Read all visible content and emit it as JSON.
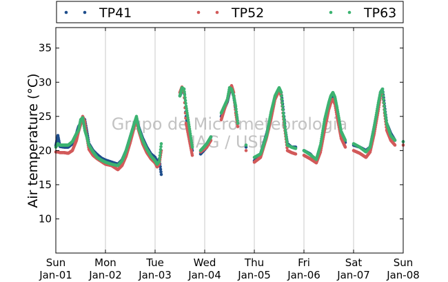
{
  "chart_data": {
    "type": "scatter",
    "ylabel": "Air temperature (°C)",
    "ylim": [
      5,
      38
    ],
    "yticks": [
      10,
      15,
      20,
      25,
      30,
      35
    ],
    "xlim": [
      "2000-01-01",
      "2000-01-08"
    ],
    "xticks": [
      {
        "date": "2000-01-01",
        "day": "Sun",
        "label": "Jan-01"
      },
      {
        "date": "2000-01-02",
        "day": "Mon",
        "label": "Jan-02"
      },
      {
        "date": "2000-01-03",
        "day": "Tue",
        "label": "Jan-03"
      },
      {
        "date": "2000-01-04",
        "day": "Wed",
        "label": "Jan-04"
      },
      {
        "date": "2000-01-05",
        "day": "Thu",
        "label": "Jan-05"
      },
      {
        "date": "2000-01-06",
        "day": "Fri",
        "label": "Jan-06"
      },
      {
        "date": "2000-01-07",
        "day": "Sat",
        "label": "Jan-07"
      },
      {
        "date": "2000-01-08",
        "day": "Sun",
        "label": "Jan-08"
      }
    ],
    "grid": "vertical",
    "legend_position": "top",
    "watermark": [
      "Grupo de Micrometeorologia",
      "IAG / USP"
    ],
    "series": [
      {
        "name": "TP41",
        "color": "#1f4e8c",
        "x": [
          "2000-01-01 00:00",
          "2000-01-01 01:00",
          "2000-01-01 02:00",
          "2000-01-01 04:00",
          "2000-01-01 06:00",
          "2000-01-01 08:00",
          "2000-01-01 10:00",
          "2000-01-01 11:00",
          "2000-01-01 12:00",
          "2000-01-01 13:00",
          "2000-01-01 14:00",
          "2000-01-01 15:00",
          "2000-01-01 16:00",
          "2000-01-01 18:00",
          "2000-01-01 20:00",
          "2000-01-01 22:00",
          "2000-01-02 00:00",
          "2000-01-02 03:00",
          "2000-01-02 06:00",
          "2000-01-02 08:00",
          "2000-01-02 10:00",
          "2000-01-02 12:00",
          "2000-01-02 14:00",
          "2000-01-02 15:00",
          "2000-01-02 16:00",
          "2000-01-02 18:00",
          "2000-01-02 20:00",
          "2000-01-02 22:00",
          "2000-01-03 00:00",
          "2000-01-03 01:00",
          "2000-01-03 02:00",
          "2000-01-03 03:00",
          "2000-01-03 12:00",
          "2000-01-03 13:00",
          "2000-01-03 14:00",
          "2000-01-03 15:00",
          "2000-01-03 18:00",
          "2000-01-03 22:00",
          "2000-01-04 01:00",
          "2000-01-04 03:00",
          "2000-01-04 08:00",
          "2000-01-04 11:00",
          "2000-01-04 12:00",
          "2000-01-04 13:00",
          "2000-01-04 14:00",
          "2000-01-04 15:00",
          "2000-01-04 16:00",
          "2000-01-04 20:00",
          "2000-01-05 00:00",
          "2000-01-05 03:00",
          "2000-01-05 06:00",
          "2000-01-05 08:00",
          "2000-01-05 10:00",
          "2000-01-05 12:00",
          "2000-01-05 13:00",
          "2000-01-05 14:00",
          "2000-01-05 15:00",
          "2000-01-05 16:00",
          "2000-01-05 18:00",
          "2000-01-05 20:00",
          "2000-01-06 00:00",
          "2000-01-06 03:00",
          "2000-01-06 06:00",
          "2000-01-06 08:00",
          "2000-01-06 10:00",
          "2000-01-06 12:00",
          "2000-01-06 13:00",
          "2000-01-06 14:00",
          "2000-01-06 15:00",
          "2000-01-06 16:00",
          "2000-01-06 18:00",
          "2000-01-06 20:00",
          "2000-01-07 00:00",
          "2000-01-07 03:00",
          "2000-01-07 06:00",
          "2000-01-07 08:00",
          "2000-01-07 10:00",
          "2000-01-07 12:00",
          "2000-01-07 13:00",
          "2000-01-07 14:00",
          "2000-01-07 15:00",
          "2000-01-07 16:00",
          "2000-01-07 18:00",
          "2000-01-07 20:00",
          "2000-01-08 00:00"
        ],
        "y": [
          20.7,
          22.2,
          20.6,
          20.5,
          20.5,
          21.0,
          22.5,
          23.5,
          24.0,
          24.8,
          24.5,
          22.8,
          21.0,
          20.0,
          19.4,
          18.9,
          18.6,
          18.3,
          18.0,
          18.6,
          20.0,
          22.0,
          24.0,
          24.8,
          23.5,
          21.8,
          20.5,
          19.5,
          19.0,
          18.2,
          18.8,
          16.5,
          28.0,
          28.8,
          29.0,
          25.0,
          20.0,
          19.5,
          20.5,
          22.0,
          25.0,
          27.2,
          28.5,
          29.0,
          28.0,
          26.0,
          24.0,
          20.5,
          18.5,
          19.5,
          22.5,
          25.0,
          27.8,
          29.0,
          28.5,
          26.0,
          23.0,
          21.0,
          20.5,
          20.5,
          20.0,
          19.5,
          18.5,
          20.5,
          24.0,
          26.5,
          27.5,
          28.0,
          27.5,
          26.0,
          22.5,
          21.2,
          20.8,
          20.5,
          20.0,
          20.5,
          23.5,
          26.5,
          28.5,
          29.0,
          26.5,
          24.0,
          22.5,
          21.5,
          21.3
        ]
      },
      {
        "name": "TP52",
        "color": "#d25a5a",
        "x": [
          "2000-01-01 00:00",
          "2000-01-01 01:00",
          "2000-01-01 02:00",
          "2000-01-01 04:00",
          "2000-01-01 06:00",
          "2000-01-01 08:00",
          "2000-01-01 10:00",
          "2000-01-01 11:00",
          "2000-01-01 12:00",
          "2000-01-01 13:00",
          "2000-01-01 14:00",
          "2000-01-01 15:00",
          "2000-01-01 16:00",
          "2000-01-01 18:00",
          "2000-01-01 20:00",
          "2000-01-01 22:00",
          "2000-01-02 00:00",
          "2000-01-02 03:00",
          "2000-01-02 06:00",
          "2000-01-02 08:00",
          "2000-01-02 10:00",
          "2000-01-02 12:00",
          "2000-01-02 14:00",
          "2000-01-02 15:00",
          "2000-01-02 16:00",
          "2000-01-02 18:00",
          "2000-01-02 20:00",
          "2000-01-02 22:00",
          "2000-01-03 00:00",
          "2000-01-03 01:00",
          "2000-01-03 02:00",
          "2000-01-03 03:00",
          "2000-01-03 12:00",
          "2000-01-03 13:00",
          "2000-01-03 14:00",
          "2000-01-03 15:00",
          "2000-01-03 18:00",
          "2000-01-03 22:00",
          "2000-01-04 01:00",
          "2000-01-04 03:00",
          "2000-01-04 08:00",
          "2000-01-04 11:00",
          "2000-01-04 12:00",
          "2000-01-04 13:00",
          "2000-01-04 14:00",
          "2000-01-04 15:00",
          "2000-01-04 16:00",
          "2000-01-04 20:00",
          "2000-01-05 00:00",
          "2000-01-05 03:00",
          "2000-01-05 06:00",
          "2000-01-05 08:00",
          "2000-01-05 10:00",
          "2000-01-05 12:00",
          "2000-01-05 13:00",
          "2000-01-05 14:00",
          "2000-01-05 15:00",
          "2000-01-05 16:00",
          "2000-01-05 18:00",
          "2000-01-05 20:00",
          "2000-01-06 00:00",
          "2000-01-06 03:00",
          "2000-01-06 06:00",
          "2000-01-06 08:00",
          "2000-01-06 10:00",
          "2000-01-06 12:00",
          "2000-01-06 13:00",
          "2000-01-06 14:00",
          "2000-01-06 15:00",
          "2000-01-06 16:00",
          "2000-01-06 18:00",
          "2000-01-06 20:00",
          "2000-01-07 00:00",
          "2000-01-07 03:00",
          "2000-01-07 06:00",
          "2000-01-07 08:00",
          "2000-01-07 10:00",
          "2000-01-07 12:00",
          "2000-01-07 13:00",
          "2000-01-07 14:00",
          "2000-01-07 15:00",
          "2000-01-07 16:00",
          "2000-01-07 18:00",
          "2000-01-07 20:00",
          "2000-01-08 00:00"
        ],
        "y": [
          19.8,
          19.8,
          19.7,
          19.7,
          19.6,
          20.0,
          21.5,
          22.8,
          23.8,
          25.0,
          24.2,
          22.0,
          20.2,
          19.3,
          18.8,
          18.4,
          18.0,
          17.8,
          17.2,
          17.8,
          19.2,
          21.2,
          23.5,
          24.5,
          23.0,
          21.0,
          19.7,
          18.8,
          18.2,
          17.6,
          18.0,
          20.0,
          28.5,
          29.3,
          28.5,
          24.0,
          19.3,
          19.8,
          20.5,
          21.5,
          24.5,
          27.5,
          28.8,
          29.5,
          28.5,
          25.5,
          23.5,
          20.0,
          18.3,
          19.0,
          22.0,
          24.5,
          27.5,
          28.8,
          28.0,
          25.0,
          22.5,
          20.0,
          19.7,
          19.5,
          19.3,
          18.8,
          18.2,
          19.8,
          23.0,
          26.0,
          27.0,
          27.5,
          26.8,
          25.0,
          21.8,
          20.5,
          20.0,
          19.6,
          19.0,
          19.8,
          22.5,
          26.0,
          28.0,
          28.5,
          25.5,
          23.0,
          21.5,
          20.8,
          20.8
        ]
      },
      {
        "name": "TP63",
        "color": "#3cb371",
        "x": [
          "2000-01-01 00:00",
          "2000-01-01 01:00",
          "2000-01-01 02:00",
          "2000-01-01 04:00",
          "2000-01-01 06:00",
          "2000-01-01 08:00",
          "2000-01-01 10:00",
          "2000-01-01 11:00",
          "2000-01-01 12:00",
          "2000-01-01 13:00",
          "2000-01-01 14:00",
          "2000-01-01 15:00",
          "2000-01-01 16:00",
          "2000-01-01 18:00",
          "2000-01-01 20:00",
          "2000-01-01 22:00",
          "2000-01-02 00:00",
          "2000-01-02 03:00",
          "2000-01-02 06:00",
          "2000-01-02 08:00",
          "2000-01-02 10:00",
          "2000-01-02 12:00",
          "2000-01-02 14:00",
          "2000-01-02 15:00",
          "2000-01-02 16:00",
          "2000-01-02 18:00",
          "2000-01-02 20:00",
          "2000-01-02 22:00",
          "2000-01-03 00:00",
          "2000-01-03 01:00",
          "2000-01-03 02:00",
          "2000-01-03 03:00",
          "2000-01-03 12:00",
          "2000-01-03 13:00",
          "2000-01-03 14:00",
          "2000-01-03 15:00",
          "2000-01-03 18:00",
          "2000-01-03 22:00",
          "2000-01-04 01:00",
          "2000-01-04 03:00",
          "2000-01-04 08:00",
          "2000-01-04 11:00",
          "2000-01-04 12:00",
          "2000-01-04 13:00",
          "2000-01-04 14:00",
          "2000-01-04 15:00",
          "2000-01-04 16:00",
          "2000-01-04 20:00",
          "2000-01-05 00:00",
          "2000-01-05 03:00",
          "2000-01-05 06:00",
          "2000-01-05 08:00",
          "2000-01-05 10:00",
          "2000-01-05 12:00",
          "2000-01-05 13:00",
          "2000-01-05 14:00",
          "2000-01-05 15:00",
          "2000-01-05 16:00",
          "2000-01-05 18:00",
          "2000-01-05 20:00",
          "2000-01-06 00:00",
          "2000-01-06 03:00",
          "2000-01-06 06:00",
          "2000-01-06 08:00",
          "2000-01-06 10:00",
          "2000-01-06 12:00",
          "2000-01-06 13:00",
          "2000-01-06 14:00",
          "2000-01-06 15:00",
          "2000-01-06 16:00",
          "2000-01-06 18:00",
          "2000-01-06 20:00",
          "2000-01-07 00:00",
          "2000-01-07 03:00",
          "2000-01-07 06:00",
          "2000-01-07 08:00",
          "2000-01-07 10:00",
          "2000-01-07 12:00",
          "2000-01-07 13:00",
          "2000-01-07 14:00",
          "2000-01-07 15:00",
          "2000-01-07 16:00",
          "2000-01-07 18:00",
          "2000-01-07 20:00",
          "2000-01-08 00:00"
        ],
        "y": [
          20.5,
          21.0,
          20.8,
          20.8,
          20.8,
          21.3,
          22.5,
          23.0,
          24.5,
          24.8,
          23.0,
          22.0,
          20.8,
          19.8,
          19.0,
          18.6,
          18.3,
          18.0,
          17.8,
          18.5,
          20.0,
          22.0,
          24.0,
          25.0,
          23.3,
          21.5,
          20.2,
          19.2,
          18.5,
          18.0,
          18.4,
          21.0,
          28.0,
          29.2,
          29.0,
          26.5,
          20.5,
          20.0,
          21.0,
          22.0,
          25.5,
          27.5,
          29.2,
          29.0,
          28.0,
          26.5,
          24.0,
          20.8,
          19.0,
          19.5,
          22.3,
          25.5,
          28.0,
          29.2,
          28.5,
          25.5,
          23.0,
          20.8,
          20.5,
          20.3,
          20.0,
          19.4,
          18.7,
          20.8,
          24.5,
          27.0,
          28.0,
          28.5,
          27.8,
          26.3,
          22.8,
          21.5,
          21.0,
          20.5,
          19.8,
          20.5,
          23.5,
          27.0,
          28.5,
          29.0,
          26.0,
          24.0,
          22.2,
          21.5,
          21.3
        ]
      }
    ]
  }
}
